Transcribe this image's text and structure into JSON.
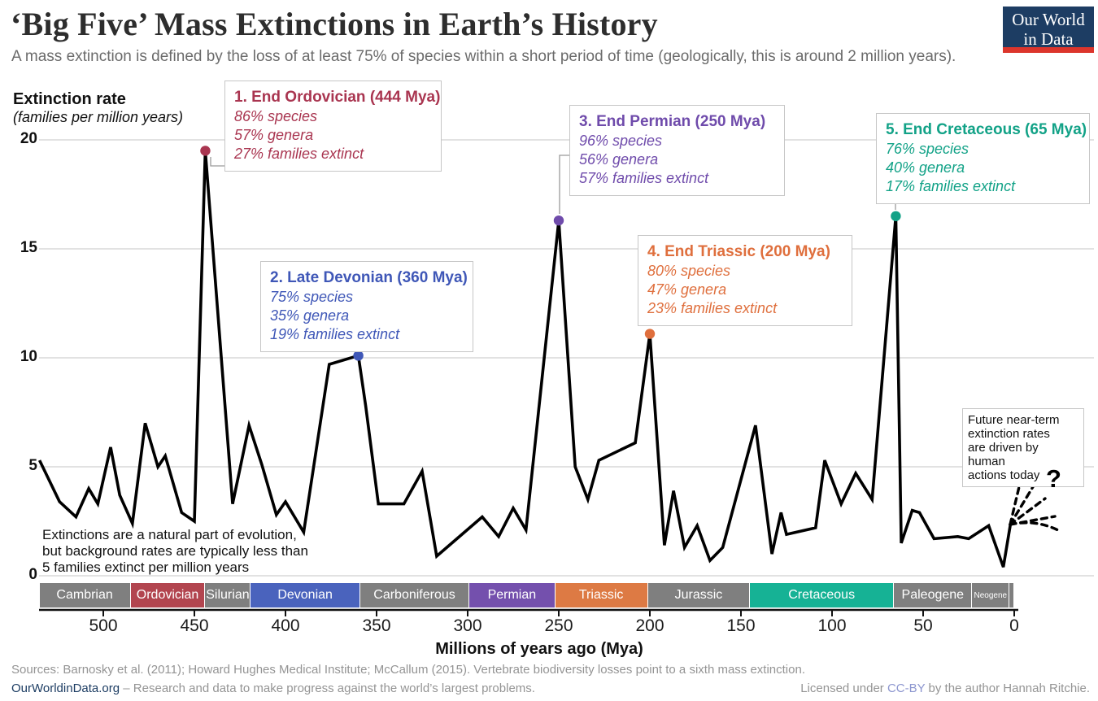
{
  "header": {
    "title": "‘Big Five’ Mass Extinctions in Earth’s History",
    "subtitle": "A mass extinction is defined by the loss of at least 75% of species within a short period of time (geologically, this is around 2 million years).",
    "logo": {
      "line1": "Our World",
      "line2": "in Data",
      "bg_color": "#1d3d63",
      "accent_color": "#dc352c"
    }
  },
  "chart_data": {
    "type": "line",
    "title": "‘Big Five’ Mass Extinctions in Earth’s History",
    "ylabel_title": "Extinction rate",
    "ylabel_sub": "(families per million years)",
    "xlabel": "Millions of years ago (Mya)",
    "xlim": [
      535,
      0
    ],
    "x_axis_reversed": true,
    "ylim": [
      0,
      20
    ],
    "y_ticks": [
      0,
      5,
      10,
      15,
      20
    ],
    "x_ticks": [
      500,
      450,
      400,
      350,
      300,
      250,
      200,
      150,
      100,
      50,
      0
    ],
    "grid": true,
    "line_color": "#000000",
    "grid_color": "#d8d8d8",
    "series": [
      {
        "name": "Extinction rate (families per million years)",
        "points": [
          [
            535,
            5.3
          ],
          [
            524,
            3.4
          ],
          [
            515,
            2.7
          ],
          [
            508,
            4.0
          ],
          [
            503,
            3.3
          ],
          [
            496,
            5.9
          ],
          [
            491,
            3.7
          ],
          [
            484,
            2.4
          ],
          [
            477,
            7.0
          ],
          [
            470,
            5.0
          ],
          [
            466,
            5.5
          ],
          [
            457,
            2.9
          ],
          [
            450,
            2.5
          ],
          [
            444,
            19.5
          ],
          [
            429,
            3.3
          ],
          [
            420,
            6.9
          ],
          [
            413,
            5.1
          ],
          [
            405,
            2.8
          ],
          [
            400,
            3.4
          ],
          [
            390,
            2.0
          ],
          [
            376,
            9.7
          ],
          [
            360,
            10.1
          ],
          [
            356,
            7.8
          ],
          [
            349,
            3.3
          ],
          [
            335,
            3.3
          ],
          [
            325,
            4.8
          ],
          [
            317,
            0.9
          ],
          [
            292,
            2.7
          ],
          [
            283,
            1.8
          ],
          [
            275,
            3.1
          ],
          [
            268,
            2.1
          ],
          [
            250,
            16.3
          ],
          [
            241,
            5.0
          ],
          [
            234,
            3.5
          ],
          [
            228,
            5.3
          ],
          [
            208,
            6.1
          ],
          [
            200,
            11.1
          ],
          [
            192,
            1.4
          ],
          [
            187,
            3.9
          ],
          [
            181,
            1.3
          ],
          [
            174,
            2.3
          ],
          [
            167,
            0.7
          ],
          [
            160,
            1.3
          ],
          [
            142,
            6.9
          ],
          [
            133,
            1.0
          ],
          [
            128,
            2.9
          ],
          [
            125,
            1.9
          ],
          [
            109,
            2.2
          ],
          [
            104,
            5.3
          ],
          [
            95,
            3.3
          ],
          [
            87,
            4.7
          ],
          [
            78,
            3.5
          ],
          [
            65,
            16.5
          ],
          [
            62,
            1.5
          ],
          [
            56,
            3.0
          ],
          [
            52,
            2.9
          ],
          [
            44,
            1.7
          ],
          [
            31,
            1.8
          ],
          [
            25,
            1.7
          ],
          [
            14,
            2.3
          ],
          [
            6,
            0.4
          ],
          [
            2,
            2.4
          ]
        ]
      }
    ],
    "peaks": [
      {
        "num": 1,
        "mya": 444,
        "rate": 19.5,
        "color": "#a93550"
      },
      {
        "num": 2,
        "mya": 360,
        "rate": 10.1,
        "color": "#3f57b7"
      },
      {
        "num": 3,
        "mya": 250,
        "rate": 16.3,
        "color": "#6f4bab"
      },
      {
        "num": 4,
        "mya": 200,
        "rate": 11.1,
        "color": "#df6f3d"
      },
      {
        "num": 5,
        "mya": 65,
        "rate": 16.5,
        "color": "#12a287"
      }
    ]
  },
  "boxes": [
    {
      "title": "1. End Ordovician (444 Mya)",
      "lines": [
        "86% species",
        "57% genera",
        "27% families extinct"
      ],
      "color": "#a93550"
    },
    {
      "title": "2. Late Devonian (360 Mya)",
      "lines": [
        "75% species",
        "35% genera",
        "19% families extinct"
      ],
      "color": "#3f57b7"
    },
    {
      "title": "3. End Permian (250 Mya)",
      "lines": [
        "96% species",
        "56% genera",
        "57% families extinct"
      ],
      "color": "#6f4bab"
    },
    {
      "title": "4. End Triassic (200 Mya)",
      "lines": [
        "80% species",
        "47% genera",
        "23% families extinct"
      ],
      "color": "#df6f3d"
    },
    {
      "title": "5. End Cretaceous (65 Mya)",
      "lines": [
        "76% species",
        "40% genera",
        "17% families extinct"
      ],
      "color": "#12a287"
    }
  ],
  "periods": [
    {
      "name": "Cambrian",
      "start": 535,
      "end": 485,
      "color": "#7f7f7f"
    },
    {
      "name": "Ordovician",
      "start": 485,
      "end": 444,
      "color": "#b2454f"
    },
    {
      "name": "Silurian",
      "start": 444,
      "end": 419,
      "color": "#7f7f7f"
    },
    {
      "name": "Devonian",
      "start": 419,
      "end": 359,
      "color": "#4a63bd"
    },
    {
      "name": "Carboniferous",
      "start": 359,
      "end": 299,
      "color": "#7f7f7f"
    },
    {
      "name": "Permian",
      "start": 299,
      "end": 252,
      "color": "#7450ad"
    },
    {
      "name": "Triassic",
      "start": 252,
      "end": 201,
      "color": "#dd7a44"
    },
    {
      "name": "Jurassic",
      "start": 201,
      "end": 145,
      "color": "#7f7f7f"
    },
    {
      "name": "Cretaceous",
      "start": 145,
      "end": 66,
      "color": "#16b295"
    },
    {
      "name": "Paleogene",
      "start": 66,
      "end": 23,
      "color": "#7f7f7f"
    },
    {
      "name": "Neogene",
      "start": 23,
      "end": 2.6,
      "color": "#7f7f7f",
      "small_label": true
    },
    {
      "name": "",
      "start": 2.6,
      "end": 0,
      "color": "#7f7f7f"
    }
  ],
  "annotations": {
    "background_note_lines": [
      "Extinctions are a natural part of evolution,",
      "but background rates are typically less than",
      "5 families extinct per million years"
    ],
    "future_note_lines": [
      "Future near-term",
      "extinction rates",
      "are driven by human",
      "actions today"
    ],
    "future_question_mark": "?"
  },
  "footer": {
    "sources": "Sources: Barnosky et al. (2011); Howard Hughes Medical Institute; McCallum (2015). Vertebrate biodiversity losses point to a sixth mass extinction.",
    "site": "OurWorldinData.org",
    "tagline": " – Research and data to make progress against the world’s largest problems.",
    "license_prefix": "Licensed under ",
    "license_link": "CC-BY",
    "license_suffix": " by the author Hannah Ritchie."
  }
}
